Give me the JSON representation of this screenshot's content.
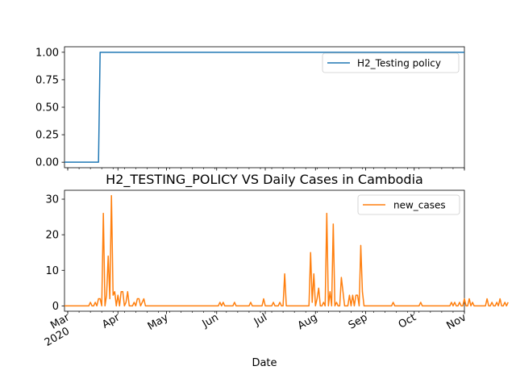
{
  "chart_data": [
    {
      "type": "line",
      "title": "",
      "xlabel": "",
      "ylabel": "",
      "x_range": [
        "2020-02-28",
        "2020-11-01"
      ],
      "ylim": [
        -0.05,
        1.05
      ],
      "yticks": [
        "0.00",
        "0.25",
        "0.50",
        "0.75",
        "1.00"
      ],
      "grid": false,
      "legend_position": "top-right",
      "series": [
        {
          "name": "H2_Testing policy",
          "color": "#1f77b4",
          "x": [
            "2020-02-28",
            "2020-03-20",
            "2020-03-21",
            "2020-11-01"
          ],
          "y": [
            0,
            0,
            1,
            1
          ]
        }
      ]
    },
    {
      "type": "line",
      "title": "H2_TESTING_POLICY VS Daily Cases in Cambodia",
      "xlabel": "Date",
      "ylabel": "",
      "x_range": [
        "2020-02-28",
        "2020-11-01"
      ],
      "ylim": [
        -1.5,
        32.5
      ],
      "yticks": [
        "0",
        "10",
        "20",
        "30"
      ],
      "grid": false,
      "legend_position": "top-right",
      "xticks": [
        {
          "date": "2020-03-01",
          "label": "Mar",
          "sublabel": "2020"
        },
        {
          "date": "2020-04-01",
          "label": "Apr",
          "sublabel": ""
        },
        {
          "date": "2020-05-01",
          "label": "May",
          "sublabel": ""
        },
        {
          "date": "2020-06-01",
          "label": "Jun",
          "sublabel": ""
        },
        {
          "date": "2020-07-01",
          "label": "Jul",
          "sublabel": ""
        },
        {
          "date": "2020-08-01",
          "label": "Aug",
          "sublabel": ""
        },
        {
          "date": "2020-09-01",
          "label": "Sep",
          "sublabel": ""
        },
        {
          "date": "2020-10-01",
          "label": "Oct",
          "sublabel": ""
        },
        {
          "date": "2020-11-01",
          "label": "Nov",
          "sublabel": ""
        }
      ],
      "series": [
        {
          "name": "new_cases",
          "color": "#ff7f0e",
          "start_date": "2020-02-28",
          "values": [
            0,
            0,
            0,
            0,
            0,
            0,
            0,
            0,
            0,
            0,
            0,
            0,
            0,
            0,
            0,
            0,
            1,
            0,
            0,
            1,
            0,
            2,
            2,
            0,
            26,
            0,
            3,
            14,
            2,
            31,
            3,
            4,
            0,
            3,
            0,
            4,
            4,
            0,
            1,
            4,
            0,
            0,
            0,
            1,
            0,
            2,
            2,
            0,
            1,
            2,
            0,
            0,
            0,
            0,
            0,
            0,
            0,
            0,
            0,
            0,
            0,
            0,
            0,
            0,
            0,
            0,
            0,
            0,
            0,
            0,
            0,
            0,
            0,
            0,
            0,
            0,
            0,
            0,
            0,
            0,
            0,
            0,
            0,
            0,
            0,
            0,
            0,
            0,
            0,
            0,
            0,
            0,
            0,
            0,
            0,
            0,
            1,
            0,
            1,
            0,
            0,
            0,
            0,
            0,
            0,
            1,
            0,
            0,
            0,
            0,
            0,
            0,
            0,
            0,
            0,
            1,
            0,
            0,
            0,
            0,
            0,
            0,
            0,
            2,
            0,
            0,
            0,
            0,
            0,
            1,
            0,
            0,
            0,
            1,
            0,
            0,
            9,
            0,
            0,
            0,
            0,
            0,
            0,
            0,
            0,
            0,
            0,
            0,
            0,
            0,
            0,
            0,
            15,
            1,
            9,
            0,
            2,
            5,
            0,
            0,
            1,
            0,
            26,
            0,
            4,
            0,
            23,
            0,
            1,
            0,
            0,
            8,
            4,
            0,
            0,
            0,
            3,
            0,
            3,
            0,
            3,
            3,
            0,
            17,
            4,
            0,
            0,
            0,
            0,
            0,
            0,
            0,
            0,
            0,
            0,
            0,
            0,
            0,
            0,
            0,
            0,
            0,
            0,
            1,
            0,
            0,
            0,
            0,
            0,
            0,
            0,
            0,
            0,
            0,
            0,
            0,
            0,
            0,
            0,
            0,
            1,
            0,
            0,
            0,
            0,
            0,
            0,
            0,
            0,
            0,
            0,
            0,
            0,
            0,
            0,
            0,
            0,
            0,
            0,
            1,
            0,
            1,
            0,
            0,
            1,
            0,
            0,
            2,
            0,
            0,
            2,
            0,
            1,
            0,
            0,
            0,
            0,
            0,
            0,
            0,
            0,
            2,
            0,
            0,
            1,
            0,
            0,
            1,
            0,
            2,
            0,
            0,
            1,
            0,
            1
          ]
        }
      ]
    }
  ]
}
